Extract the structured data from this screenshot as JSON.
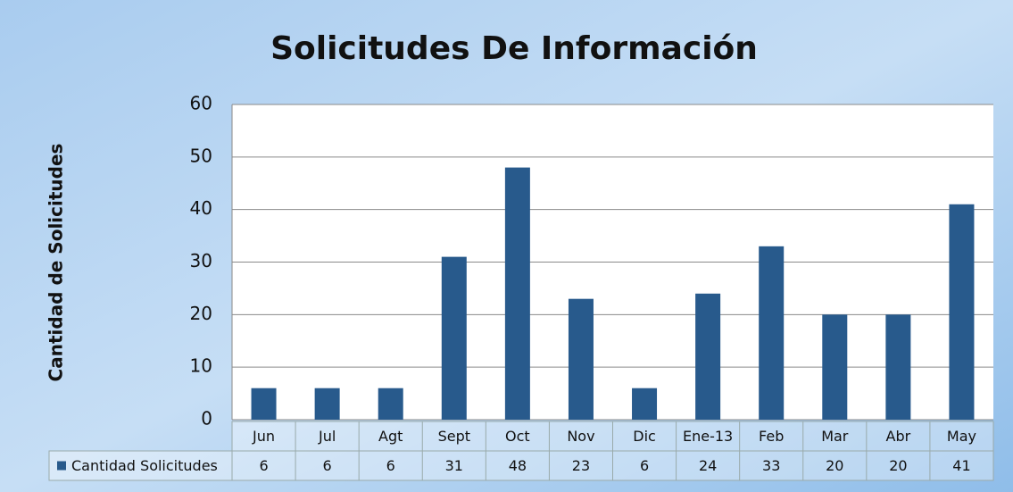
{
  "chart_data": {
    "type": "bar",
    "title": "Solicitudes De Información",
    "y_label": "Cantidad de Solicitudes",
    "categories": [
      "Jun",
      "Jul",
      "Agt",
      "Sept",
      "Oct",
      "Nov",
      "Dic",
      "Ene-13",
      "Feb",
      "Mar",
      "Abr",
      "May"
    ],
    "series": [
      {
        "name": "Cantidad Solicitudes",
        "color": "#285a8c",
        "values": [
          6,
          6,
          6,
          31,
          48,
          23,
          6,
          24,
          33,
          20,
          20,
          41
        ]
      }
    ],
    "ylim": [
      0,
      60
    ],
    "yticks": [
      0,
      10,
      20,
      30,
      40,
      50,
      60
    ],
    "grid": true,
    "data_table": true
  }
}
